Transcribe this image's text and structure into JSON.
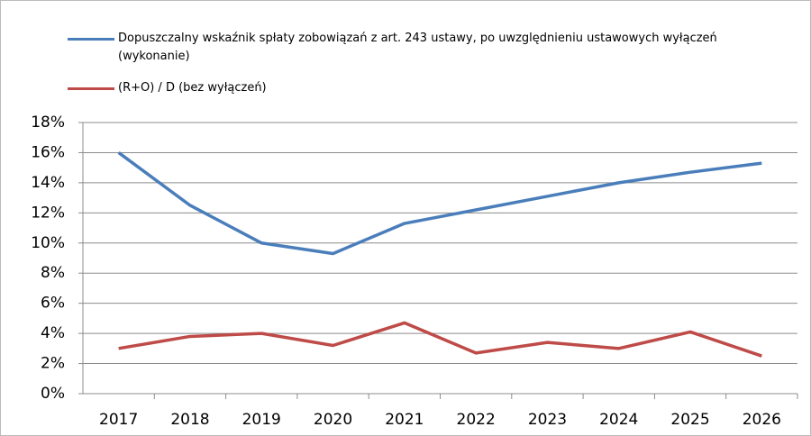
{
  "chart_data": {
    "type": "line",
    "categories": [
      "2017",
      "2018",
      "2019",
      "2020",
      "2021",
      "2022",
      "2023",
      "2024",
      "2025",
      "2026"
    ],
    "series": [
      {
        "name": "Dopuszczalny wskaźnik spłaty zobowiązań z art. 243 ustawy, po uwzględnieniu ustawowych wyłączeń (wykonanie)",
        "color": "#4a7ebb",
        "values": [
          16.0,
          12.5,
          10.0,
          9.3,
          11.3,
          12.2,
          13.1,
          14.0,
          14.7,
          15.3
        ]
      },
      {
        "name": "(R+O) / D (bez wyłączeń)",
        "color": "#be4b48",
        "values": [
          3.0,
          3.8,
          4.0,
          3.2,
          4.7,
          2.7,
          3.4,
          3.0,
          4.1,
          2.5
        ]
      }
    ],
    "ylim": [
      0,
      18
    ],
    "yticks": [
      {
        "value": 0,
        "label": "0%"
      },
      {
        "value": 2,
        "label": "2%"
      },
      {
        "value": 4,
        "label": "4%"
      },
      {
        "value": 6,
        "label": "6%"
      },
      {
        "value": 8,
        "label": "8%"
      },
      {
        "value": 10,
        "label": "10%"
      },
      {
        "value": 12,
        "label": "12%"
      },
      {
        "value": 14,
        "label": "14%"
      },
      {
        "value": 16,
        "label": "16%"
      },
      {
        "value": 18,
        "label": "18%"
      }
    ],
    "grid": true,
    "legend": "top"
  }
}
